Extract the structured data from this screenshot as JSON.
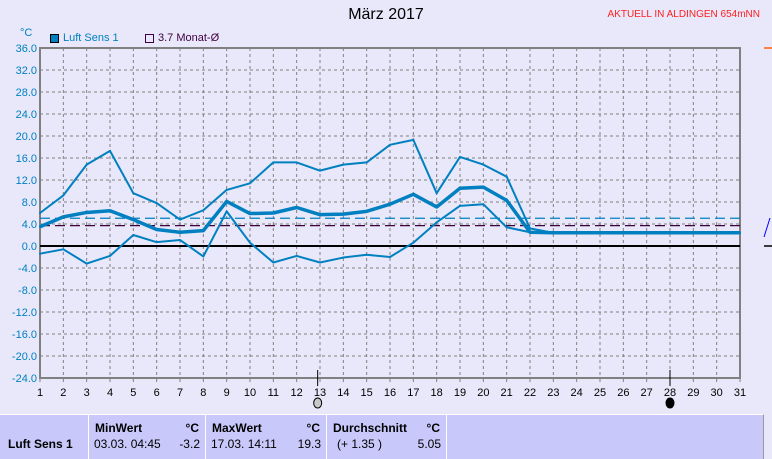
{
  "status": "AKTUELL IN ALDINGEN 654mNN",
  "chart_data": {
    "type": "line",
    "title": "März 2017",
    "ylabel": "°C",
    "ylim": [
      -24,
      36
    ],
    "yticks": [
      "36.0",
      "32.0",
      "28.0",
      "24.0",
      "20.0",
      "16.0",
      "12.0",
      "8.0",
      "4.0",
      "0.0",
      "-4.0",
      "-8.0",
      "-12.0",
      "-16.0",
      "-20.0",
      "-24.0"
    ],
    "x": [
      1,
      2,
      3,
      4,
      5,
      6,
      7,
      8,
      9,
      10,
      11,
      12,
      13,
      14,
      15,
      16,
      17,
      18,
      19,
      20,
      21,
      22,
      23,
      24,
      25,
      26,
      27,
      28,
      29,
      30,
      31
    ],
    "grid": true,
    "legend": "top-left",
    "series": [
      {
        "name": "Luft Sens 1",
        "role": "max",
        "color": "#0080c0",
        "values": [
          6.0,
          9.2,
          14.8,
          17.3,
          9.6,
          7.8,
          4.8,
          6.5,
          10.2,
          11.4,
          15.2,
          15.2,
          13.7,
          14.8,
          15.2,
          18.4,
          19.3,
          9.6,
          16.2,
          14.8,
          12.6,
          3.2,
          2.4,
          2.4,
          2.4,
          2.4,
          2.4,
          2.4,
          2.4,
          2.4,
          2.4
        ]
      },
      {
        "role": "avg",
        "color": "#0080c0",
        "values": [
          3.5,
          5.3,
          6.1,
          6.4,
          4.8,
          3.0,
          2.5,
          2.8,
          8.1,
          5.9,
          6.0,
          7.0,
          5.7,
          5.8,
          6.3,
          7.6,
          9.4,
          7.1,
          10.5,
          10.7,
          8.3,
          2.5,
          2.4,
          2.4,
          2.4,
          2.4,
          2.4,
          2.4,
          2.4,
          2.4,
          2.4
        ]
      },
      {
        "role": "min",
        "color": "#0080c0",
        "values": [
          -1.4,
          -0.6,
          -3.2,
          -1.8,
          2.0,
          0.7,
          1.1,
          -1.9,
          6.3,
          0.6,
          -3.0,
          -1.8,
          -3.0,
          -2.1,
          -1.6,
          -2.0,
          0.6,
          4.3,
          7.3,
          7.6,
          3.4,
          2.5,
          2.4,
          2.4,
          2.4,
          2.4,
          2.4,
          2.4,
          2.4,
          2.4,
          2.4
        ]
      }
    ],
    "reference_lines": [
      {
        "value": 5.05,
        "color": "#0080c0",
        "style": "dashed"
      },
      {
        "name": "3.7 Monat-Ø",
        "value": 3.7,
        "color": "#400040",
        "style": "dashed"
      }
    ],
    "markers": [
      {
        "x": 12.9,
        "type": "open-circle"
      },
      {
        "x": 28,
        "type": "filled-circle"
      }
    ]
  },
  "stats": {
    "sensor": "Luft Sens 1",
    "min": {
      "label": "MinWert",
      "unit": "°C",
      "datetime": "03.03.  04:45",
      "value": "-3.2"
    },
    "max": {
      "label": "MaxWert",
      "unit": "°C",
      "datetime": "17.03.  14:11",
      "value": "19.3"
    },
    "avg": {
      "label": "Durchschnitt",
      "unit": "°C",
      "delta": "(+ 1.35 )",
      "value": "5.05"
    }
  }
}
